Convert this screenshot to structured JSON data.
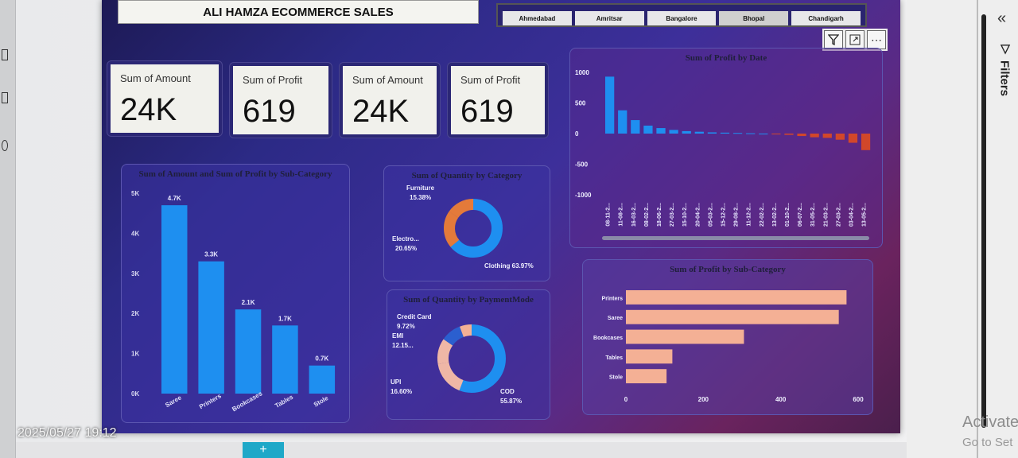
{
  "report": {
    "title": "ALI HAMZA ECOMMERCE SALES",
    "slicer_options": [
      "Ahmedabad",
      "Amritsar",
      "Bangalore",
      "Bhopal",
      "Chandigarh"
    ],
    "selected_city": "Bhopal"
  },
  "visual_header_icons": [
    "filter-icon",
    "focus-mode-icon",
    "more-options-icon"
  ],
  "kpi_cards": [
    {
      "label": "Sum of Amount",
      "value": "24K"
    },
    {
      "label": "Sum of Profit",
      "value": "619"
    },
    {
      "label": "Sum of Amount",
      "value": "24K"
    },
    {
      "label": "Sum of Profit",
      "value": "619"
    }
  ],
  "filters_pane": {
    "label": "Filters",
    "collapse_icon": "chevron-left-double-icon"
  },
  "watermark": {
    "line1": "Activate",
    "line2": "Go to Set"
  },
  "photo_timestamp": "2025/05/27 19:12",
  "colors": {
    "blue": "#1e8ff0",
    "orange": "#e47a3a",
    "peach": "#efb7a6",
    "red": "#d2472a",
    "salmon": "#f4b095",
    "dark_blue": "#2b5fcf"
  },
  "chart_data": [
    {
      "type": "bar",
      "title": "Sum of Amount and Sum of Profit by Sub-Category",
      "categories": [
        "Saree",
        "Printers",
        "Bookcases",
        "Tables",
        "Stole"
      ],
      "values": [
        4700,
        3300,
        2100,
        1700,
        700
      ],
      "data_labels": [
        "4.7K",
        "3.3K",
        "2.1K",
        "1.7K",
        "0.7K"
      ],
      "y_ticks": [
        "0K",
        "1K",
        "2K",
        "3K",
        "4K",
        "5K"
      ],
      "ylim": [
        0,
        5000
      ]
    },
    {
      "type": "pie",
      "title": "Sum of Quantity by Category",
      "slices": [
        {
          "label": "Clothing",
          "value": 63.97,
          "text": "63.97%"
        },
        {
          "label": "Electro...",
          "value": 20.65,
          "text": "20.65%"
        },
        {
          "label": "Furniture",
          "value": 15.38,
          "text": "15.38%"
        }
      ]
    },
    {
      "type": "pie",
      "title": "Sum of Quantity by PaymentMode",
      "slices": [
        {
          "label": "COD",
          "value": 55.87,
          "text": "55.87%"
        },
        {
          "label": "UPI",
          "value": 16.6,
          "text": "16.60%"
        },
        {
          "label": "EMI",
          "value": 12.15,
          "text": "12.15..."
        },
        {
          "label": "Credit Card",
          "value": 9.72,
          "text": "9.72%"
        },
        {
          "label": "",
          "value": 5.66,
          "text": ""
        }
      ]
    },
    {
      "type": "bar",
      "title": "Sum of Profit by Date",
      "categories": [
        "08-11-2...",
        "11-08-2...",
        "16-03-2...",
        "08-02-2...",
        "18-06-2...",
        "27-03-2...",
        "15-10-2...",
        "20-04-2...",
        "05-03-2...",
        "15-12-2...",
        "29-08-2...",
        "11-12-2...",
        "22-02-2...",
        "13-02-2...",
        "01-10-2...",
        "06-07-2...",
        "31-05-2...",
        "21-03-2...",
        "27-03-2...",
        "03-04-2...",
        "13-05-2..."
      ],
      "values": [
        930,
        380,
        220,
        130,
        90,
        60,
        40,
        30,
        20,
        15,
        10,
        5,
        0,
        -10,
        -20,
        -40,
        -60,
        -70,
        -100,
        -150,
        -270
      ],
      "y_ticks": [
        "1000",
        "500",
        "0",
        "-500",
        "-1000"
      ],
      "ylim": [
        -1000,
        1000
      ]
    },
    {
      "type": "bar",
      "title": "Sum of Profit by Sub-Category",
      "categories": [
        "Printers",
        "Saree",
        "Bookcases",
        "Tables",
        "Stole"
      ],
      "values": [
        570,
        550,
        305,
        120,
        105
      ],
      "x_ticks": [
        "0",
        "200",
        "400",
        "600"
      ],
      "xlim": [
        0,
        600
      ]
    }
  ]
}
